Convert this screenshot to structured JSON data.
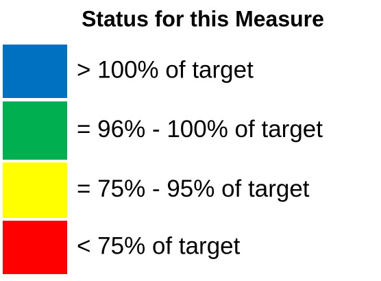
{
  "legend": {
    "title": "Status for this Measure",
    "items": [
      {
        "label": "> 100% of target",
        "color": "#0070c0"
      },
      {
        "label": "= 96% - 100% of target",
        "color": "#00b050"
      },
      {
        "label": "= 75% - 95% of target",
        "color": "#ffff00"
      },
      {
        "label": "< 75% of target",
        "color": "#ff0000"
      }
    ]
  }
}
